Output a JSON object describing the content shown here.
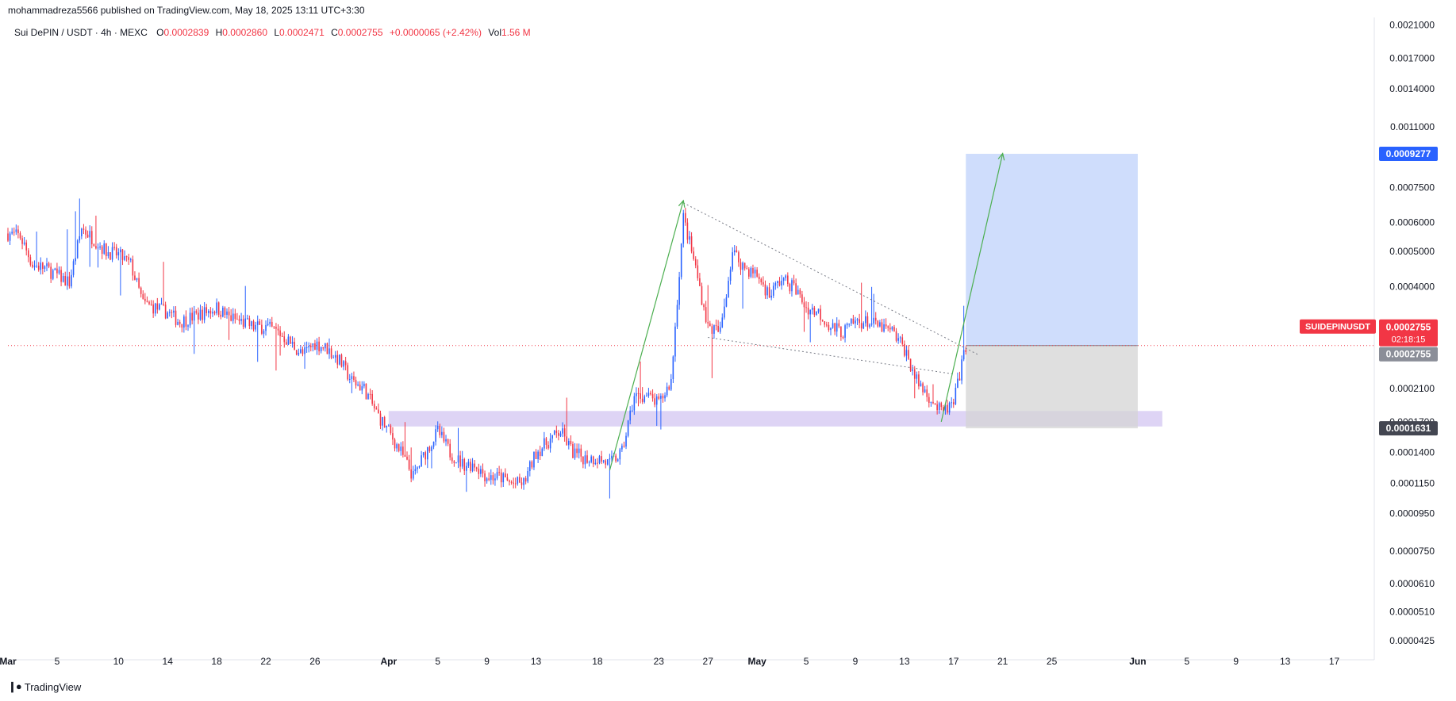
{
  "header": {
    "publisher_line": "mohammadreza5566 published on TradingView.com, May 18, 2025 13:11 UTC+3:30"
  },
  "legend": {
    "symbol": "Sui DePIN / USDT · 4h · MEXC",
    "o_label": "O",
    "o_value": "0.0002839",
    "h_label": "H",
    "h_value": "0.0002860",
    "l_label": "L",
    "l_value": "0.0002471",
    "c_label": "C",
    "c_value": "0.0002755",
    "change": "+0.0000065 (+2.42%)",
    "vol_label": "Vol",
    "vol_value": "1.56 M"
  },
  "footer": {
    "brand": "TradingView"
  },
  "colors": {
    "up": "#2962ff",
    "down": "#f23645",
    "target_fill": "#c7d7fb",
    "stop_fill": "#d4d4d4",
    "zone_fill": "#d8cdf3",
    "arrow": "#4caf50",
    "price_line": "#f23645",
    "target_badge": "#2962ff",
    "stop_badge": "#434651"
  },
  "chart_data": {
    "type": "candlestick",
    "symbol_label": "SUIDEPINUSDT",
    "scale": "log",
    "ylim": [
      4e-05,
      0.0022
    ],
    "xlim": [
      "2025-03-01",
      "2025-06-20"
    ],
    "x_tick_labels": [
      "Mar",
      "5",
      "10",
      "14",
      "18",
      "22",
      "26",
      "Apr",
      "5",
      "9",
      "13",
      "18",
      "23",
      "27",
      "May",
      "5",
      "9",
      "13",
      "17",
      "21",
      "25",
      "Jun",
      "5",
      "9",
      "13",
      "17"
    ],
    "x_tick_dates": [
      "2025-03-01",
      "2025-03-05",
      "2025-03-10",
      "2025-03-14",
      "2025-03-18",
      "2025-03-22",
      "2025-03-26",
      "2025-04-01",
      "2025-04-05",
      "2025-04-09",
      "2025-04-13",
      "2025-04-18",
      "2025-04-23",
      "2025-04-27",
      "2025-05-01",
      "2025-05-05",
      "2025-05-09",
      "2025-05-13",
      "2025-05-17",
      "2025-05-21",
      "2025-05-25",
      "2025-06-01",
      "2025-06-05",
      "2025-06-09",
      "2025-06-13",
      "2025-06-17"
    ],
    "y_tick_labels": [
      "0.0021000",
      "0.0017000",
      "0.0014000",
      "0.0011000",
      "0.0007500",
      "0.0006000",
      "0.0005000",
      "0.0004000",
      "0.0002100",
      "0.0001700",
      "0.0001400",
      "0.0001150",
      "0.0000950",
      "0.0000750",
      "0.0000610",
      "0.0000510",
      "0.0000425"
    ],
    "y_tick_values": [
      0.0021,
      0.0017,
      0.0014,
      0.0011,
      0.00075,
      0.0006,
      0.0005,
      0.0004,
      0.00021,
      0.00017,
      0.00014,
      0.000115,
      9.5e-05,
      7.5e-05,
      6.1e-05,
      5.1e-05,
      4.25e-05
    ],
    "path": [
      [
        "2025-03-01",
        0.00056
      ],
      [
        "2025-03-02",
        0.00055
      ],
      [
        "2025-03-03",
        0.00046
      ],
      [
        "2025-03-04",
        0.00045
      ],
      [
        "2025-03-05",
        0.00043
      ],
      [
        "2025-03-06",
        0.00041
      ],
      [
        "2025-03-07",
        0.00058
      ],
      [
        "2025-03-08",
        0.00054
      ],
      [
        "2025-03-09",
        0.0005
      ],
      [
        "2025-03-10",
        0.00049
      ],
      [
        "2025-03-11",
        0.00046
      ],
      [
        "2025-03-12",
        0.00036
      ],
      [
        "2025-03-13",
        0.00035
      ],
      [
        "2025-03-14",
        0.00034
      ],
      [
        "2025-03-15",
        0.00032
      ],
      [
        "2025-03-16",
        0.00033
      ],
      [
        "2025-03-17",
        0.00034
      ],
      [
        "2025-03-18",
        0.00035
      ],
      [
        "2025-03-19",
        0.00033
      ],
      [
        "2025-03-20",
        0.00032
      ],
      [
        "2025-03-21",
        0.00031
      ],
      [
        "2025-03-22",
        0.00031
      ],
      [
        "2025-03-23",
        0.0003
      ],
      [
        "2025-03-24",
        0.00028
      ],
      [
        "2025-03-25",
        0.00026
      ],
      [
        "2025-03-26",
        0.00028
      ],
      [
        "2025-03-27",
        0.00027
      ],
      [
        "2025-03-28",
        0.00025
      ],
      [
        "2025-03-29",
        0.00022
      ],
      [
        "2025-03-30",
        0.00021
      ],
      [
        "2025-03-31",
        0.00018
      ],
      [
        "2025-04-01",
        0.00016
      ],
      [
        "2025-04-02",
        0.00014
      ],
      [
        "2025-04-03",
        0.00012
      ],
      [
        "2025-04-04",
        0.00014
      ],
      [
        "2025-04-05",
        0.00016
      ],
      [
        "2025-04-06",
        0.00014
      ],
      [
        "2025-04-07",
        0.00013
      ],
      [
        "2025-04-08",
        0.00013
      ],
      [
        "2025-04-09",
        0.00012
      ],
      [
        "2025-04-10",
        0.00012
      ],
      [
        "2025-04-11",
        0.000115
      ],
      [
        "2025-04-12",
        0.000115
      ],
      [
        "2025-04-13",
        0.00014
      ],
      [
        "2025-04-14",
        0.00015
      ],
      [
        "2025-04-15",
        0.00016
      ],
      [
        "2025-04-16",
        0.00014
      ],
      [
        "2025-04-17",
        0.000135
      ],
      [
        "2025-04-18",
        0.000135
      ],
      [
        "2025-04-19",
        0.00013
      ],
      [
        "2025-04-20",
        0.00014
      ],
      [
        "2025-04-21",
        0.0002
      ],
      [
        "2025-04-22",
        0.0002
      ],
      [
        "2025-04-23",
        0.00019
      ],
      [
        "2025-04-24",
        0.00022
      ],
      [
        "2025-04-25",
        0.00062
      ],
      [
        "2025-04-26",
        0.00045
      ],
      [
        "2025-04-27",
        0.00031
      ],
      [
        "2025-04-28",
        0.0003
      ],
      [
        "2025-04-29",
        0.0005
      ],
      [
        "2025-04-30",
        0.00045
      ],
      [
        "2025-05-01",
        0.00043
      ],
      [
        "2025-05-02",
        0.00038
      ],
      [
        "2025-05-03",
        0.00042
      ],
      [
        "2025-05-04",
        0.0004
      ],
      [
        "2025-05-05",
        0.00035
      ],
      [
        "2025-05-06",
        0.00034
      ],
      [
        "2025-05-07",
        0.00031
      ],
      [
        "2025-05-08",
        0.0003
      ],
      [
        "2025-05-09",
        0.00032
      ],
      [
        "2025-05-10",
        0.00032
      ],
      [
        "2025-05-11",
        0.00031
      ],
      [
        "2025-05-12",
        0.0003
      ],
      [
        "2025-05-13",
        0.00027
      ],
      [
        "2025-05-14",
        0.00022
      ],
      [
        "2025-05-15",
        0.0002
      ],
      [
        "2025-05-16",
        0.00018
      ],
      [
        "2025-05-17",
        0.00019
      ],
      [
        "2025-05-18",
        0.0002755
      ]
    ],
    "current_price": 0.0002755,
    "current_price_label": "0.0002755",
    "countdown_label": "02:18:15",
    "position": {
      "entry": 0.0002755,
      "entry_label": "0.0002755",
      "target": 0.0009277,
      "target_label": "0.0009277",
      "stop": 0.0001631,
      "stop_label": "0.0001631",
      "start_date": "2025-05-18",
      "end_date": "2025-06-01"
    },
    "support_zone": {
      "low": 0.000165,
      "high": 0.000182,
      "start_date": "2025-04-01",
      "end_date": "2025-06-03"
    },
    "wedge_upper": [
      [
        "2025-04-25",
        0.00068
      ],
      [
        "2025-05-19",
        0.00026
      ]
    ],
    "wedge_lower": [
      [
        "2025-04-27",
        0.00029
      ],
      [
        "2025-05-17",
        0.00023
      ]
    ],
    "arrows": [
      [
        [
          "2025-04-19",
          0.000125
        ],
        [
          "2025-04-25",
          0.00069
        ]
      ],
      [
        [
          "2025-05-16",
          0.00017
        ],
        [
          "2025-05-21",
          0.00093
        ]
      ]
    ],
    "grid": false
  }
}
